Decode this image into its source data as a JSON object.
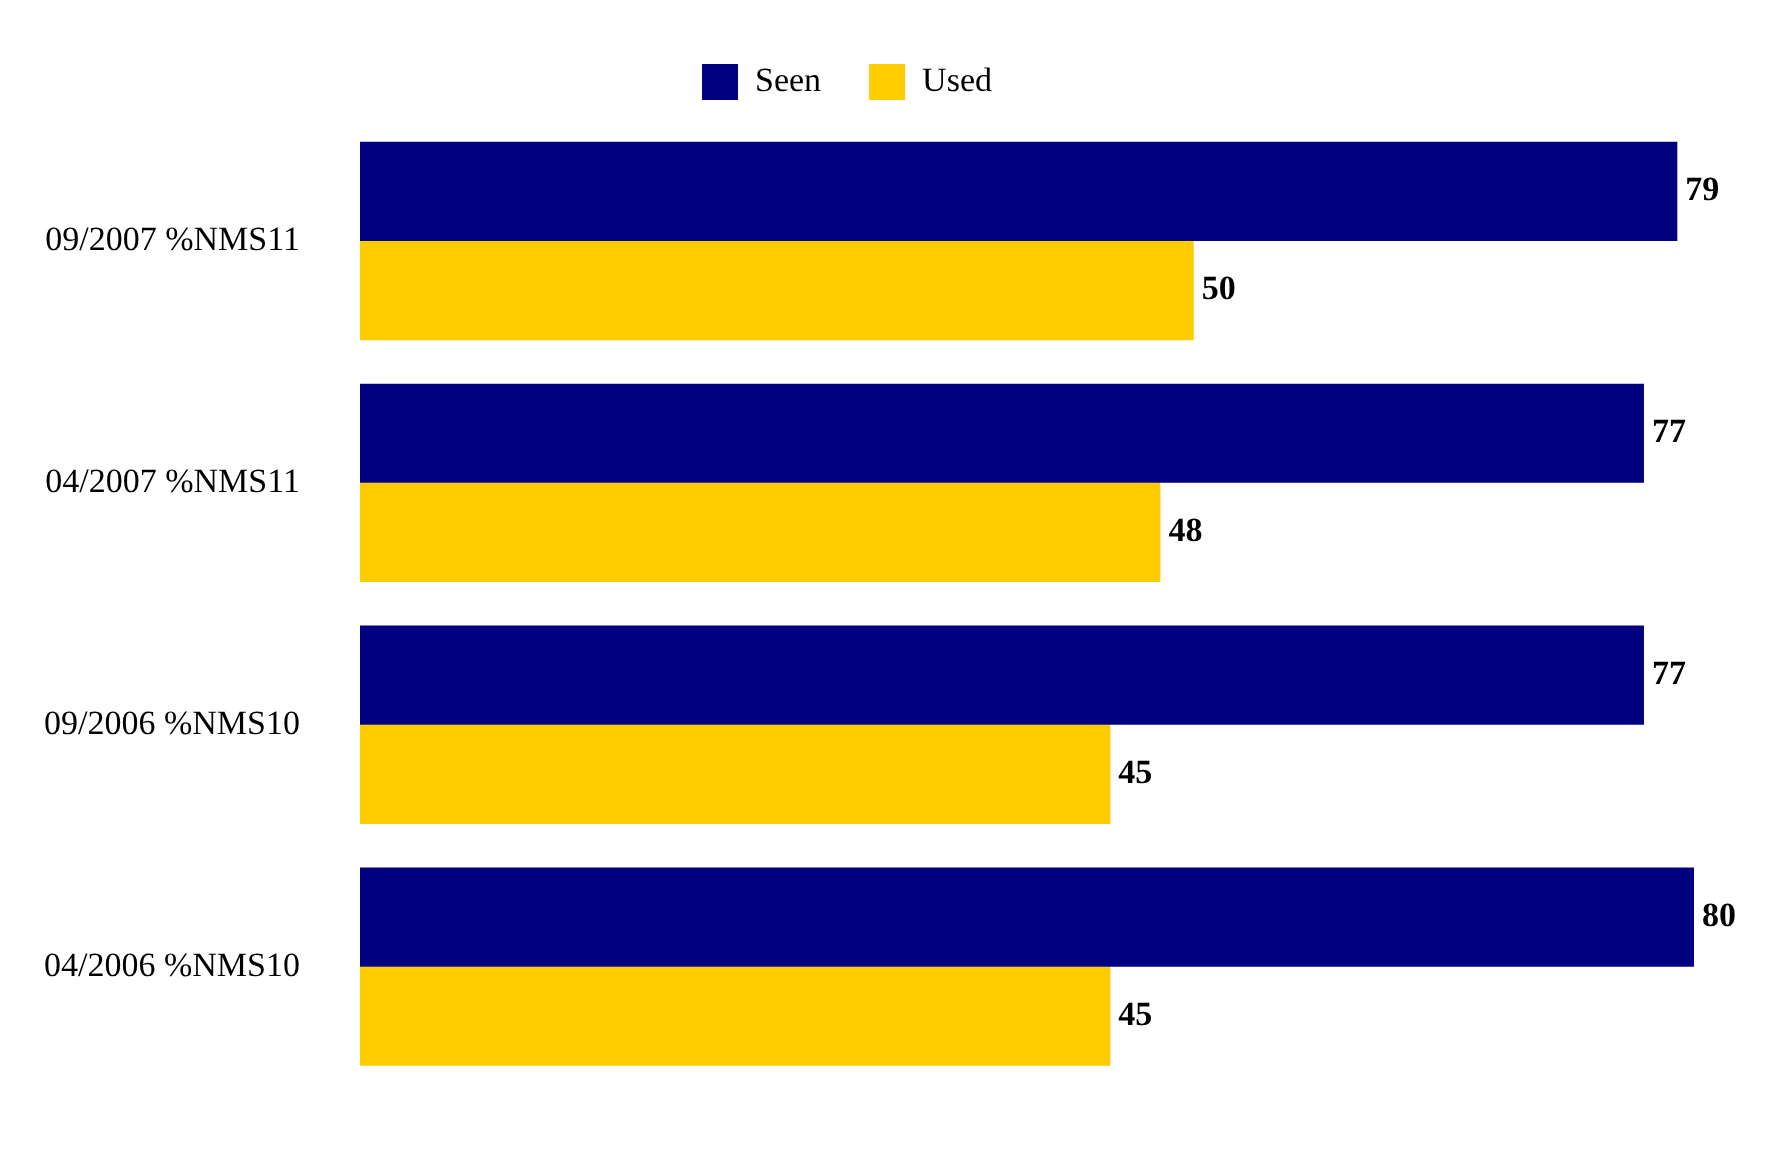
{
  "chart_data": {
    "type": "bar",
    "orientation": "horizontal",
    "categories": [
      "09/2007 %NMS11",
      "04/2007 %NMS11",
      "09/2006 %NMS10",
      "04/2006 %NMS10"
    ],
    "series": [
      {
        "name": "Seen",
        "color": "#000080",
        "values": [
          79,
          77,
          77,
          80
        ]
      },
      {
        "name": "Used",
        "color": "#ffcc00",
        "values": [
          50,
          48,
          45,
          45
        ]
      }
    ],
    "data_labels": true,
    "legend": "top",
    "grid": false,
    "tick_labels": "y"
  }
}
